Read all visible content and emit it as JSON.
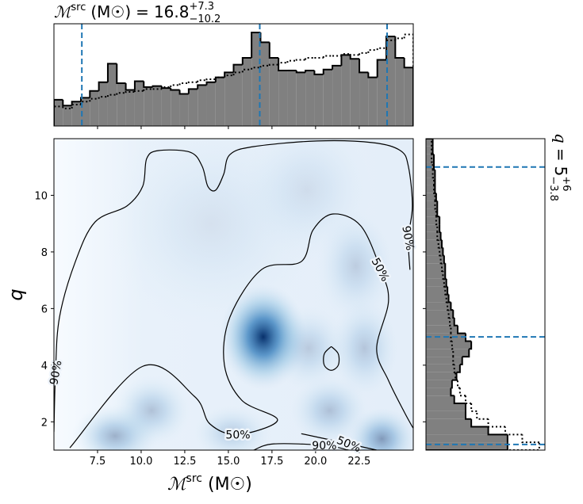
{
  "chart_data": [
    {
      "type": "histogram",
      "title": {
        "symbol": "ℳ",
        "superscript": "src",
        "unit": "(M☉)",
        "equals": "=",
        "median": "16.8",
        "plus": "+7.3",
        "minus": "−10.2"
      },
      "bins": [
        5,
        5.515,
        6.03,
        6.545,
        7.06,
        7.575,
        8.09,
        8.605,
        9.12,
        9.635,
        10.15,
        10.665,
        11.18,
        11.695,
        12.21,
        12.725,
        13.24,
        13.755,
        14.27,
        14.785,
        15.3,
        15.815,
        16.33,
        16.845,
        17.36,
        17.875,
        18.39,
        18.905,
        19.42,
        19.935,
        20.45,
        20.965,
        21.48,
        21.995,
        22.51,
        23.025,
        23.54,
        24.055,
        24.57,
        25.085,
        25.6
      ],
      "series": [
        {
          "color": "#808080",
          "values": [
            0.27,
            0.21,
            0.25,
            0.29,
            0.36,
            0.45,
            0.64,
            0.44,
            0.37,
            0.46,
            0.4,
            0.41,
            0.39,
            0.37,
            0.33,
            0.38,
            0.42,
            0.45,
            0.5,
            0.55,
            0.63,
            0.7,
            0.96,
            0.86,
            0.7,
            0.57,
            0.57,
            0.55,
            0.57,
            0.53,
            0.58,
            0.62,
            0.73,
            0.69,
            0.55,
            0.5,
            0.68,
            0.92,
            0.7,
            0.6
          ]
        },
        {
          "color": "#000000",
          "linestyle": "dotted",
          "values": [
            0.2,
            0.18,
            0.22,
            0.25,
            0.28,
            0.3,
            0.32,
            0.34,
            0.35,
            0.36,
            0.38,
            0.38,
            0.4,
            0.42,
            0.44,
            0.45,
            0.47,
            0.48,
            0.5,
            0.52,
            0.55,
            0.58,
            0.6,
            0.62,
            0.63,
            0.65,
            0.67,
            0.68,
            0.7,
            0.7,
            0.72,
            0.72,
            0.74,
            0.73,
            0.75,
            0.78,
            0.8,
            0.88,
            0.9,
            0.94
          ]
        }
      ],
      "ylim": [
        0,
        1.05
      ],
      "quantiles": {
        "color": "#1f77b4",
        "values": [
          6.6,
          16.8,
          24.1
        ]
      }
    },
    {
      "type": "density",
      "xlabel": {
        "symbol": "ℳ",
        "superscript": "src",
        "unit": "(M☉)"
      },
      "ylabel": "q",
      "xlim": [
        5,
        25.6
      ],
      "ylim": [
        1,
        12
      ],
      "xticks": [
        7.5,
        {
          "value": 10,
          "label": "10.0"
        },
        12.5,
        {
          "value": 15,
          "label": "15.0"
        },
        17.5,
        {
          "value": 20,
          "label": "20.0"
        },
        22.5
      ],
      "yticks": [
        2,
        4,
        6,
        8,
        10
      ],
      "cmap_color": "#08306b",
      "blobs": [
        {
          "x": 17,
          "y": 5,
          "sx": 1.0,
          "sy": 0.75,
          "weight": 1
        },
        {
          "x": 8.5,
          "y": 1.5,
          "sx": 1.0,
          "sy": 0.45,
          "weight": 0.35
        },
        {
          "x": 10.6,
          "y": 2.4,
          "sx": 0.9,
          "sy": 0.5,
          "weight": 0.25
        },
        {
          "x": 15.2,
          "y": 1.6,
          "sx": 0.9,
          "sy": 0.4,
          "weight": 0.2
        },
        {
          "x": 20.8,
          "y": 2.4,
          "sx": 0.9,
          "sy": 0.5,
          "weight": 0.25
        },
        {
          "x": 23.8,
          "y": 1.4,
          "sx": 0.8,
          "sy": 0.45,
          "weight": 0.45
        },
        {
          "x": 19.6,
          "y": 4.6,
          "sx": 0.9,
          "sy": 0.6,
          "weight": 0.2
        },
        {
          "x": 22.8,
          "y": 4.6,
          "sx": 0.8,
          "sy": 0.7,
          "weight": 0.22
        },
        {
          "x": 22.3,
          "y": 7.5,
          "sx": 0.9,
          "sy": 0.8,
          "weight": 0.18
        },
        {
          "x": 19.5,
          "y": 10.2,
          "sx": 1.5,
          "sy": 1.0,
          "weight": 0.1
        },
        {
          "x": 14,
          "y": 9,
          "sx": 2.5,
          "sy": 1.5,
          "weight": 0.08
        }
      ],
      "contours": [
        {
          "label": "90%",
          "segments": [
            {
              "x": [
                5.0,
                5.09,
                5.32,
                6.23,
                7.36,
                9.18,
                10.09,
                10.32,
                11.0,
                12.82,
                13.5,
                13.82,
                14.27,
                14.73,
                15.09,
                16.45,
                20.09,
                23.27,
                24.86,
                25.32,
                25.55,
                25.32,
                25.41
              ],
              "y": [
                1.64,
                3.74,
                5.7,
                7.66,
                9.06,
                9.62,
                10.32,
                11.3,
                11.58,
                11.52,
                11.02,
                10.32,
                10.18,
                10.74,
                11.44,
                11.72,
                11.92,
                11.86,
                11.58,
                11.02,
                9.62,
                8.49,
                7.37
              ]
            },
            {
              "x": [
                16.45,
                17.6,
                20.5,
                21.9
              ],
              "y": [
                1.0,
                1.22,
                1.17,
                1.0
              ]
            }
          ]
        },
        {
          "label": "50%",
          "segments": [
            {
              "x": [
                5.91,
                10.09,
                13.05,
                13.95,
                15.55,
                17.82,
                15.77,
                14.77,
                15.09,
                16.91,
                19.18,
                19.86,
                21.0,
                22.59,
                23.73,
                24.18,
                23.5,
                24.18,
                25.09,
                25.59
              ],
              "y": [
                1.08,
                3.96,
                2.9,
                1.92,
                1.55,
                2.06,
                2.76,
                4.02,
                5.7,
                7.38,
                7.66,
                8.78,
                9.34,
                8.92,
                7.38,
                6.26,
                4.58,
                3.46,
                2.34,
                1.78
              ]
            },
            {
              "x": [
                19.18,
                21.91,
                23.5
              ],
              "y": [
                1.58,
                1.22,
                1.0
              ]
            },
            {
              "x": [
                20.9,
                21.3,
                21.3,
                20.9,
                20.5,
                20.5,
                20.9
              ],
              "y": [
                4.66,
                4.4,
                4.0,
                3.82,
                4.0,
                4.4,
                4.66
              ]
            }
          ]
        }
      ]
    },
    {
      "type": "histogram",
      "orientation": "horizontal",
      "title": {
        "symbol": "q",
        "equals": "=",
        "median": "5",
        "plus": "+6",
        "minus": "−3.8"
      },
      "bins": [
        1,
        1.275,
        1.55,
        1.825,
        2.1,
        2.375,
        2.65,
        2.925,
        3.2,
        3.475,
        3.75,
        4.025,
        4.3,
        4.575,
        4.85,
        5.125,
        5.4,
        5.675,
        5.95,
        6.225,
        6.5,
        6.775,
        7.05,
        7.325,
        7.6,
        7.875,
        8.15,
        8.425,
        8.7,
        8.975,
        9.25,
        9.525,
        9.8,
        10.075,
        10.35,
        10.625,
        10.9,
        11.175,
        11.45,
        11.725,
        12
      ],
      "series": [
        {
          "color": "#808080",
          "values": [
            0.72,
            0.72,
            0.55,
            0.4,
            0.35,
            0.35,
            0.25,
            0.22,
            0.23,
            0.27,
            0.3,
            0.32,
            0.38,
            0.4,
            0.35,
            0.28,
            0.25,
            0.24,
            0.22,
            0.2,
            0.19,
            0.18,
            0.17,
            0.17,
            0.16,
            0.15,
            0.14,
            0.13,
            0.12,
            0.12,
            0.1,
            0.1,
            0.09,
            0.08,
            0.08,
            0.08,
            0.07,
            0.07,
            0.06,
            0.06
          ]
        },
        {
          "color": "#000000",
          "linestyle": "dotted",
          "values": [
            1.0,
            0.85,
            0.7,
            0.55,
            0.45,
            0.4,
            0.35,
            0.3,
            0.28,
            0.26,
            0.25,
            0.24,
            0.24,
            0.23,
            0.22,
            0.22,
            0.21,
            0.2,
            0.19,
            0.18,
            0.17,
            0.16,
            0.15,
            0.14,
            0.13,
            0.12,
            0.11,
            0.1,
            0.1,
            0.09,
            0.09,
            0.08,
            0.08,
            0.07,
            0.07,
            0.06,
            0.06,
            0.05,
            0.05,
            0.05
          ]
        }
      ],
      "xlim": [
        0,
        1.05
      ],
      "quantiles": {
        "color": "#1f77b4",
        "values": [
          1.2,
          5,
          11
        ]
      }
    }
  ]
}
